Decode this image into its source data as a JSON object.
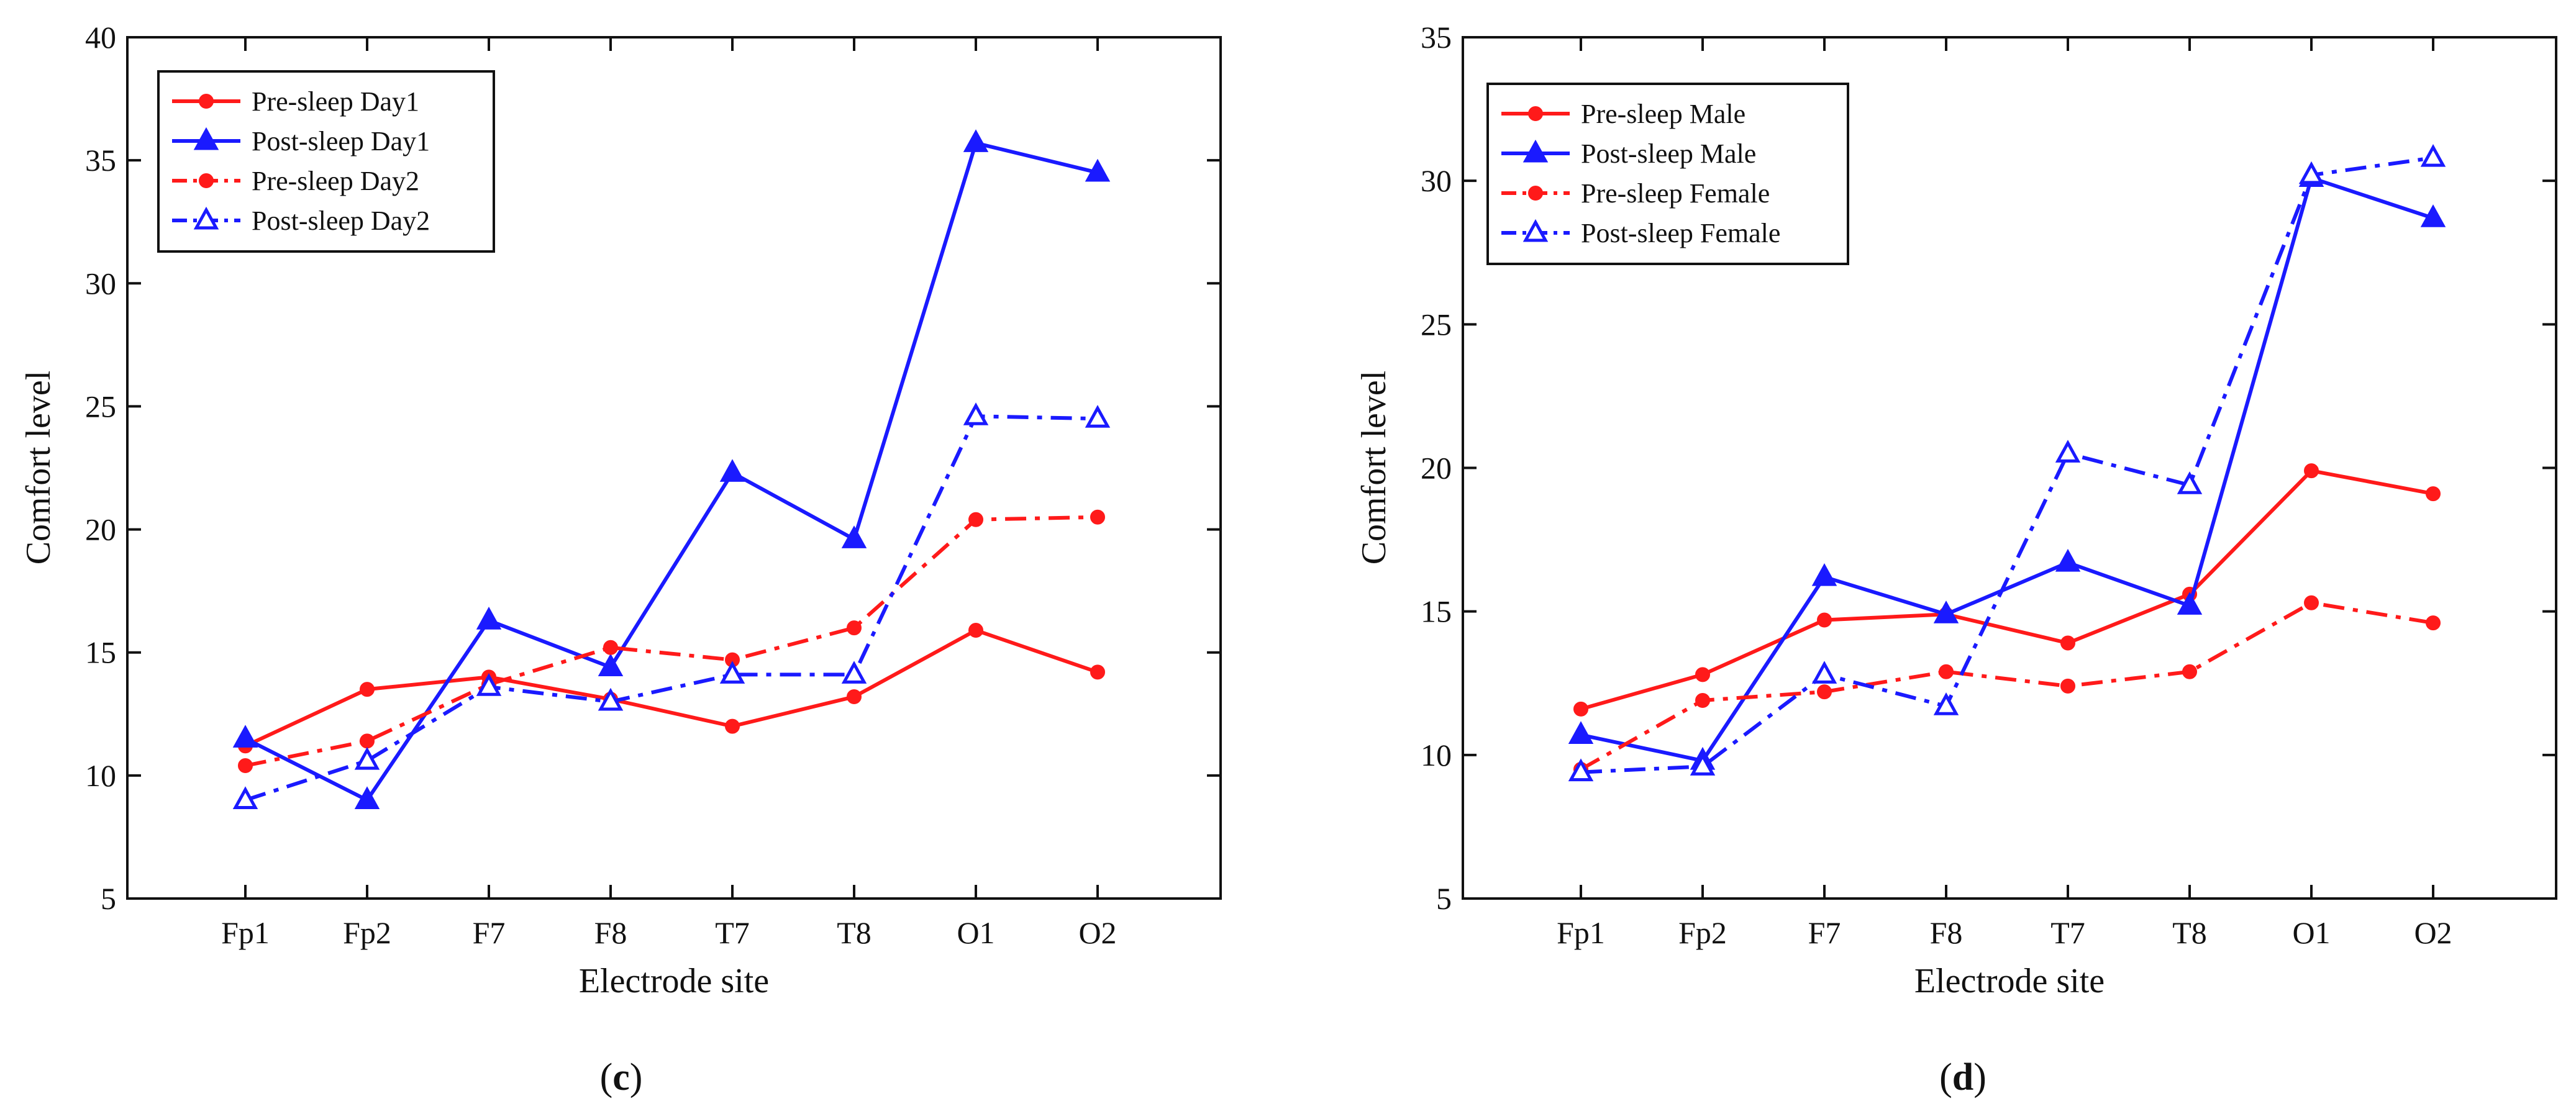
{
  "chart_data": [
    {
      "type": "line",
      "panel_label": {
        "open": "(",
        "letter": "c",
        "close": ")"
      },
      "xlabel": "Electrode site",
      "ylabel": "Comfort level",
      "categories": [
        "Fp1",
        "Fp2",
        "F7",
        "F8",
        "T7",
        "T8",
        "O1",
        "O2"
      ],
      "ylim": [
        5,
        40
      ],
      "yticks": [
        5,
        10,
        15,
        20,
        25,
        30,
        35,
        40
      ],
      "grid": false,
      "legend_position": "top-left",
      "series": [
        {
          "name": "Pre-sleep Day1",
          "color": "#ff1a1a",
          "line": "solid",
          "marker": "dot",
          "values": [
            11.2,
            13.5,
            14.0,
            13.1,
            12.0,
            13.2,
            15.9,
            14.2
          ]
        },
        {
          "name": "Post-sleep Day1",
          "color": "#1a1aff",
          "line": "solid",
          "marker": "triangle-filled",
          "values": [
            11.5,
            9.0,
            16.3,
            14.4,
            22.3,
            19.6,
            35.7,
            34.5
          ]
        },
        {
          "name": "Pre-sleep Day2",
          "color": "#ff1a1a",
          "line": "dashdot",
          "marker": "dot",
          "values": [
            10.4,
            11.4,
            13.7,
            15.2,
            14.7,
            16.0,
            20.4,
            20.5
          ]
        },
        {
          "name": "Post-sleep Day2",
          "color": "#1a1aff",
          "line": "dashdot",
          "marker": "triangle-open",
          "values": [
            9.0,
            10.6,
            13.6,
            13.0,
            14.1,
            14.1,
            24.6,
            24.5
          ]
        }
      ]
    },
    {
      "type": "line",
      "panel_label": {
        "open": "(",
        "letter": "d",
        "close": ")"
      },
      "xlabel": "Electrode site",
      "ylabel": "Comfort level",
      "categories": [
        "Fp1",
        "Fp2",
        "F7",
        "F8",
        "T7",
        "T8",
        "O1",
        "O2"
      ],
      "ylim": [
        5,
        35
      ],
      "yticks": [
        5,
        10,
        15,
        20,
        25,
        30,
        35
      ],
      "grid": false,
      "legend_position": "top-left",
      "series": [
        {
          "name": "Pre-sleep Male",
          "color": "#ff1a1a",
          "line": "solid",
          "marker": "dot",
          "values": [
            11.6,
            12.8,
            14.7,
            14.9,
            13.9,
            15.6,
            19.9,
            19.1
          ]
        },
        {
          "name": "Post-sleep Male",
          "color": "#1a1aff",
          "line": "solid",
          "marker": "triangle-filled",
          "values": [
            10.7,
            9.8,
            16.2,
            14.9,
            16.7,
            15.2,
            30.1,
            28.7
          ]
        },
        {
          "name": "Pre-sleep Female",
          "color": "#ff1a1a",
          "line": "dashdot",
          "marker": "dot",
          "values": [
            9.5,
            11.9,
            12.2,
            12.9,
            12.4,
            12.9,
            15.3,
            14.6
          ]
        },
        {
          "name": "Post-sleep Female",
          "color": "#1a1aff",
          "line": "dashdot",
          "marker": "triangle-open",
          "values": [
            9.4,
            9.6,
            12.8,
            11.7,
            20.5,
            19.4,
            30.2,
            30.8
          ]
        }
      ]
    }
  ]
}
